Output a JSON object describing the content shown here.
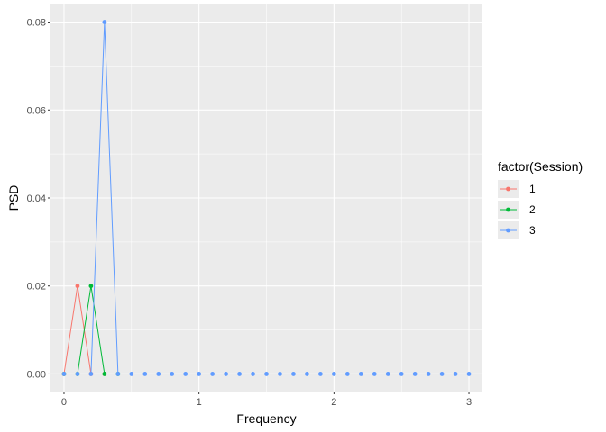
{
  "chart_data": {
    "type": "line",
    "title": "",
    "xlabel": "Frequency",
    "ylabel": "PSD",
    "xlim": [
      -0.1,
      3.1
    ],
    "ylim": [
      -0.004,
      0.084
    ],
    "x_ticks": [
      0,
      1,
      2,
      3
    ],
    "x_tick_labels": [
      "0",
      "1",
      "2",
      "3"
    ],
    "y_ticks": [
      0,
      0.02,
      0.04,
      0.06,
      0.08
    ],
    "y_tick_labels": [
      "0.00",
      "0.02",
      "0.04",
      "0.06",
      "0.08"
    ],
    "grid": true,
    "legend": {
      "title": "factor(Session)",
      "placement": "right"
    },
    "series": [
      {
        "name": "1",
        "color": "#F8766D",
        "x": [
          0,
          0.1,
          0.2,
          0.3
        ],
        "y": [
          0,
          0.02,
          0,
          0
        ]
      },
      {
        "name": "2",
        "color": "#00BA38",
        "x": [
          0,
          0.1,
          0.2,
          0.3,
          0.4
        ],
        "y": [
          0,
          0,
          0.02,
          0,
          0
        ]
      },
      {
        "name": "3",
        "color": "#619CFF",
        "x": [
          0,
          0.1,
          0.2,
          0.3,
          0.4,
          0.5,
          0.6,
          0.7,
          0.8,
          0.9,
          1.0,
          1.1,
          1.2,
          1.3,
          1.4,
          1.5,
          1.6,
          1.7,
          1.8,
          1.9,
          2.0,
          2.1,
          2.2,
          2.3,
          2.4,
          2.5,
          2.6,
          2.7,
          2.8,
          2.9,
          3.0
        ],
        "y": [
          0,
          0,
          0,
          0.08,
          0,
          0,
          0,
          0,
          0,
          0,
          0,
          0,
          0,
          0,
          0,
          0,
          0,
          0,
          0,
          0,
          0,
          0,
          0,
          0,
          0,
          0,
          0,
          0,
          0,
          0,
          0
        ]
      }
    ]
  }
}
